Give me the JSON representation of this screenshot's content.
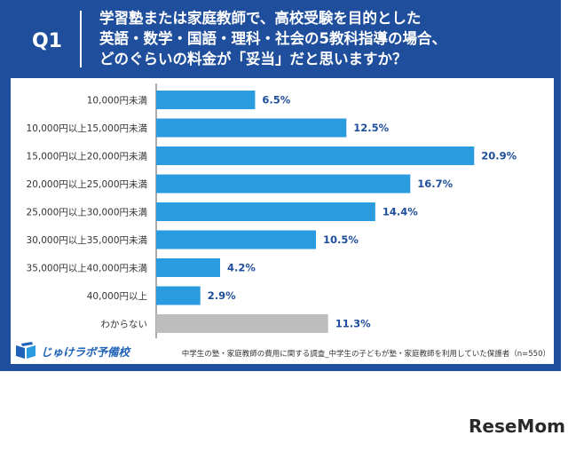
{
  "header": {
    "q_label": "Q1",
    "title_lines": [
      "学習塾または家庭教師で、高校受験を目的とした",
      "英語・数学・国語・理科・社会の5教科指導の場合、",
      "どのぐらいの料金が「妥当」だと思いますか？"
    ]
  },
  "chart_data": {
    "type": "bar",
    "orientation": "horizontal",
    "categories": [
      "10,000円未満",
      "10,000円以上15,000円未満",
      "15,000円以上20,000円未満",
      "20,000円以上25,000円未満",
      "25,000円以上30,000円未満",
      "30,000円以上35,000円未満",
      "35,000円以上40,000円未満",
      "40,000円以上",
      "わからない"
    ],
    "values": [
      6.5,
      12.5,
      20.9,
      16.7,
      14.4,
      10.5,
      4.2,
      2.9,
      11.3
    ],
    "value_labels": [
      "6.5%",
      "12.5%",
      "20.9%",
      "16.7%",
      "14.4%",
      "10.5%",
      "4.2%",
      "2.9%",
      "11.3%"
    ],
    "bar_colors": [
      "#2b9be0",
      "#2b9be0",
      "#2b9be0",
      "#2b9be0",
      "#2b9be0",
      "#2b9be0",
      "#2b9be0",
      "#2b9be0",
      "#bdbdbd"
    ],
    "xlim": [
      0,
      21
    ],
    "grid": false
  },
  "footer": {
    "logo_text": "じゅけラボ予備校",
    "source": "中学生の塾・家庭教師の費用に関する調査_中学生の子どもが塾・家庭教師を利用していた保護者（n=550）"
  },
  "watermark": {
    "text": "ReseMom"
  },
  "colors": {
    "frame": "#1f4e9c",
    "bar": "#2b9be0",
    "bar_unknown": "#bdbdbd",
    "value_text": "#1f4e9c"
  }
}
